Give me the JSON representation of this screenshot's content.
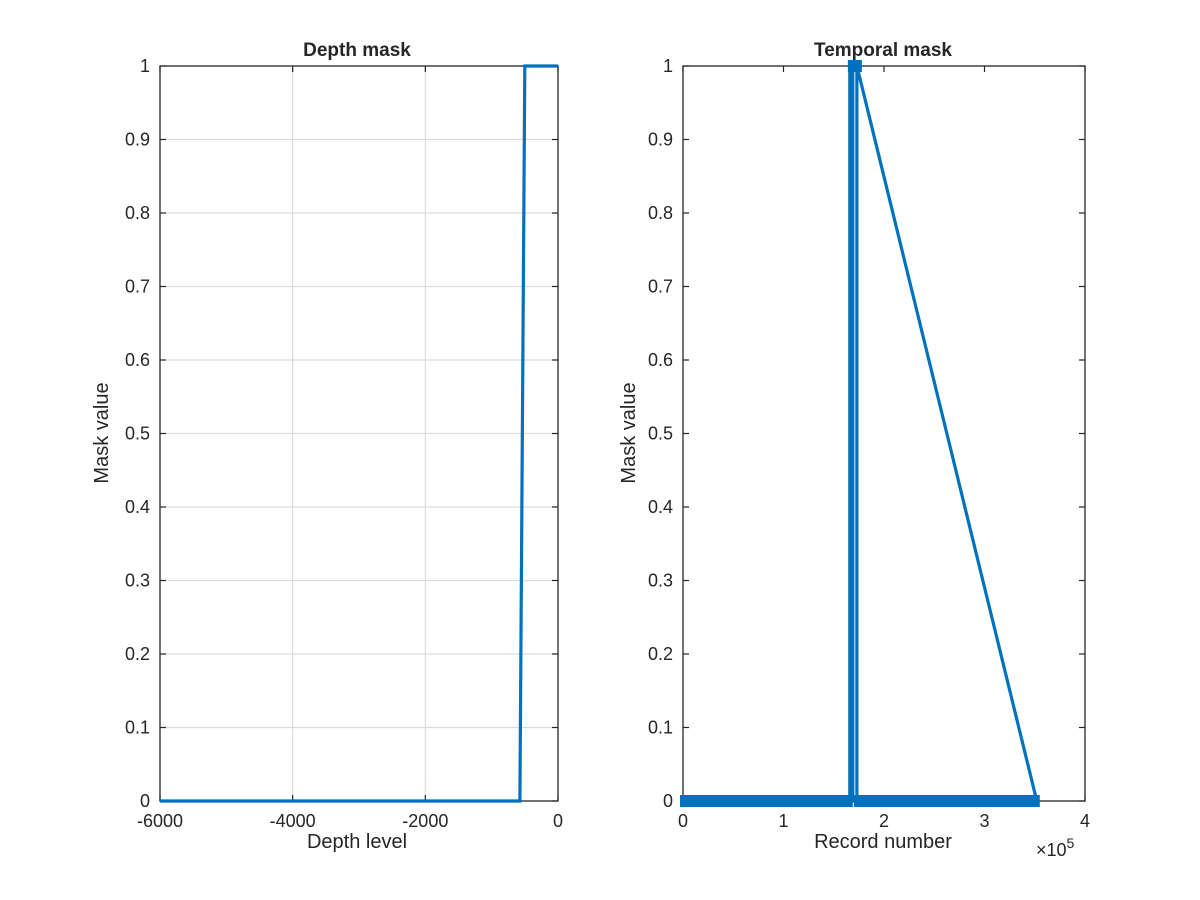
{
  "chart_data": [
    {
      "type": "line",
      "title": "Depth mask",
      "xlabel": "Depth level",
      "ylabel": "Mask value",
      "xlim": [
        -6000,
        0
      ],
      "ylim": [
        0,
        1
      ],
      "xticks": [
        -6000,
        -4000,
        -2000,
        0
      ],
      "xtick_labels": [
        "-6000",
        "-4000",
        "-2000",
        "0"
      ],
      "yticks": [
        0,
        0.1,
        0.2,
        0.3,
        0.4,
        0.5,
        0.6,
        0.7,
        0.8,
        0.9,
        1
      ],
      "ytick_labels": [
        "0",
        "0.1",
        "0.2",
        "0.3",
        "0.4",
        "0.5",
        "0.6",
        "0.7",
        "0.8",
        "0.9",
        "1"
      ],
      "grid": true,
      "series": [
        {
          "x": [
            -6000,
            -575,
            -500,
            0
          ],
          "y": [
            0,
            0,
            1,
            1
          ],
          "color": "#0072BD"
        }
      ]
    },
    {
      "type": "line",
      "title": "Temporal mask",
      "xlabel": "Record number",
      "ylabel": "Mask value",
      "x_exponent_label": "×10",
      "x_exponent_power": "5",
      "xlim": [
        0,
        4
      ],
      "ylim": [
        0,
        1
      ],
      "xticks": [
        0,
        1,
        2,
        3,
        4
      ],
      "xtick_labels": [
        "0",
        "1",
        "2",
        "3",
        "4"
      ],
      "yticks": [
        0,
        0.1,
        0.2,
        0.3,
        0.4,
        0.5,
        0.6,
        0.7,
        0.8,
        0.9,
        1
      ],
      "ytick_labels": [
        "0",
        "0.1",
        "0.2",
        "0.3",
        "0.4",
        "0.5",
        "0.6",
        "0.7",
        "0.8",
        "0.9",
        "1"
      ],
      "grid": false,
      "series": [
        {
          "x": [
            0,
            1.66,
            1.66,
            1.69,
            1.69,
            1.73,
            1.73,
            3.52
          ],
          "y": [
            0,
            0,
            1,
            1,
            0,
            0,
            1,
            0
          ],
          "color": "#0072BD",
          "markers": {
            "x0": 0,
            "x1": 3.52,
            "y": 0,
            "gaps": [
              [
                1.66,
                1.73
              ]
            ],
            "top_x": [
              1.69,
              1.73
            ]
          }
        }
      ]
    }
  ]
}
